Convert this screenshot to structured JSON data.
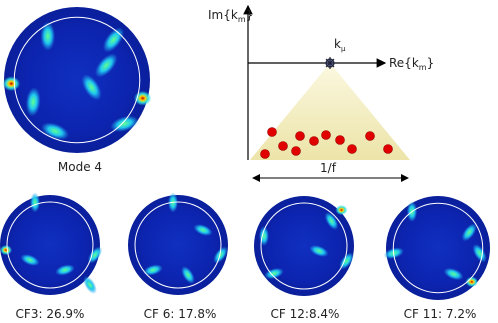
{
  "main_mode": {
    "caption": "Mode 4"
  },
  "schematic": {
    "imaginary_axis_label": [
      "Im{k",
      "m",
      "}"
    ],
    "real_axis_label": [
      "Re{k",
      "m",
      "}"
    ],
    "point_label": [
      "k",
      "μ"
    ],
    "width_label": "1/f"
  },
  "modes": [
    {
      "caption": "CF3:  26.9%"
    },
    {
      "caption": "CF 6:  17.8%"
    },
    {
      "caption": "CF 12:8.4%"
    },
    {
      "caption": "CF 11: 7.2%"
    }
  ]
}
